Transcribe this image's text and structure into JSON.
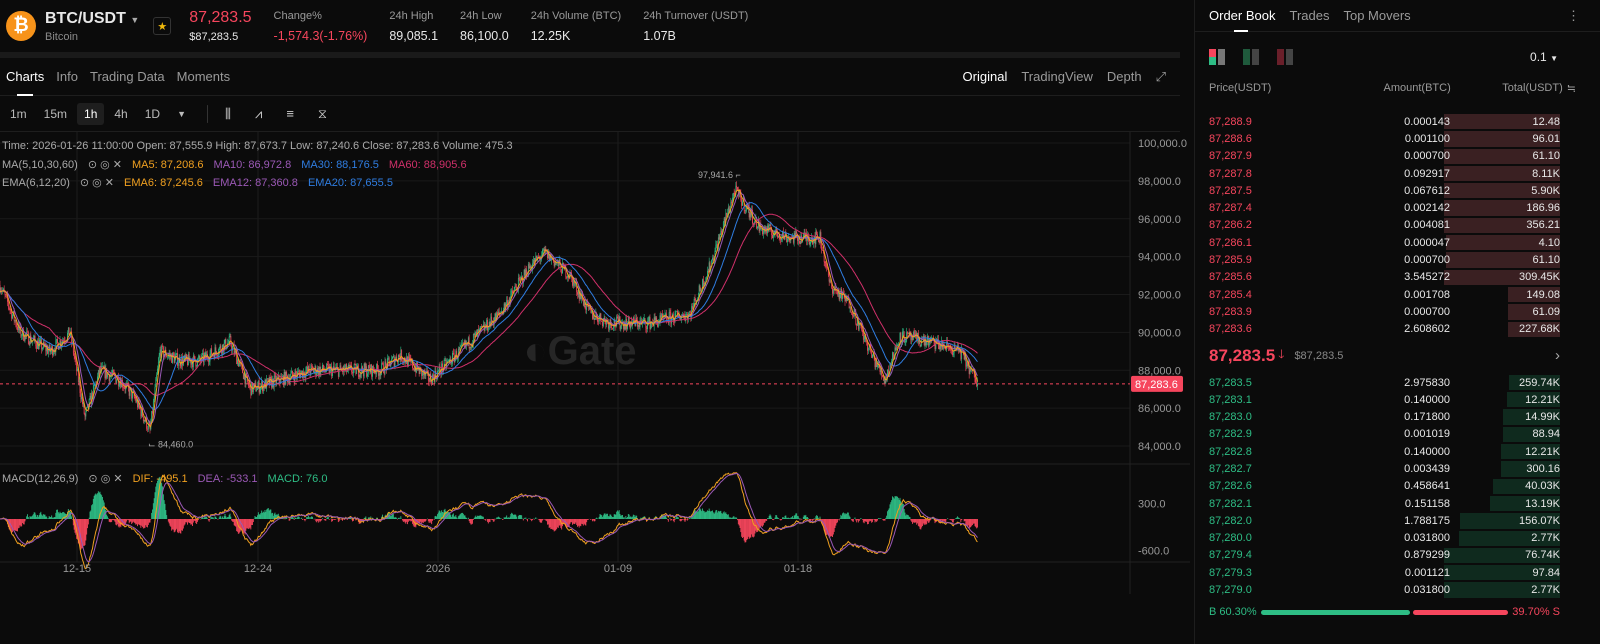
{
  "header": {
    "pair": "BTC/USDT",
    "name": "Bitcoin",
    "coin_glyph": "₿",
    "price": "87,283.5",
    "price_usd": "$87,283.5",
    "stats": [
      {
        "label": "Change%",
        "value": "-1,574.3(-1.76%)",
        "neg": true
      },
      {
        "label": "24h High",
        "value": "89,085.1"
      },
      {
        "label": "24h Low",
        "value": "86,100.0"
      },
      {
        "label": "24h Volume (BTC)",
        "value": "12.25K"
      },
      {
        "label": "24h Turnover (USDT)",
        "value": "1.07B"
      }
    ]
  },
  "tabs": [
    "Charts",
    "Info",
    "Trading Data",
    "Moments"
  ],
  "views": [
    "Original",
    "TradingView",
    "Depth"
  ],
  "timeframes": [
    "1m",
    "15m",
    "1h",
    "4h",
    "1D"
  ],
  "ohlc": "Time: 2026-01-26 11:00:00     Open: 87,555.9     High: 87,673.7     Low: 87,240.6     Close: 87,283.6     Volume: 475.3",
  "ma": {
    "label": "MA(5,10,30,60)",
    "items": [
      "MA5: 87,208.6",
      "MA10: 86,972.8",
      "MA30: 88,176.5",
      "MA60: 88,905.6"
    ]
  },
  "ema": {
    "label": "EMA(6,12,20)",
    "items": [
      "EMA6: 87,245.6",
      "EMA12: 87,360.8",
      "EMA20: 87,655.5"
    ]
  },
  "macd": {
    "label": "MACD(12,26,9)",
    "items": [
      "DIF: -495.1",
      "DEA: -533.1",
      "MACD: 76.0"
    ]
  },
  "colors": {
    "up": "#2ebd85",
    "down": "#f6465d",
    "ma5": "#f0a020",
    "ma10": "#9b59b6",
    "ma30": "#2f7de1",
    "ma60": "#d0306a"
  },
  "watermark": "Gate",
  "chart_data": {
    "type": "candlestick",
    "ylim": [
      83000,
      101000
    ],
    "yticks": [
      "100,000.0",
      "98,000.0",
      "96,000.0",
      "94,000.0",
      "92,000.0",
      "90,000.0",
      "88,000.0",
      "86,000.0",
      "84,000.0"
    ],
    "xticks": [
      {
        "label": "12-15",
        "day": 3.85
      },
      {
        "label": "12-24",
        "day": 12.9
      },
      {
        "label": "2026",
        "day": 21.9
      },
      {
        "label": "01-09",
        "day": 30.9
      },
      {
        "label": "01-18",
        "day": 39.9
      }
    ],
    "high_label": "97,941.6",
    "low_label": "84,460.0",
    "last_price": "87,283.6",
    "last": 87283.6,
    "macd_ticks": [
      "300.0",
      "-600.0"
    ],
    "keypoints": [
      [
        0,
        92500
      ],
      [
        1,
        90000
      ],
      [
        2.5,
        89000
      ],
      [
        3.5,
        90000
      ],
      [
        4.25,
        85500
      ],
      [
        5,
        88000
      ],
      [
        6,
        87500
      ],
      [
        6.75,
        86500
      ],
      [
        7.5,
        84800
      ],
      [
        8,
        89000
      ],
      [
        9,
        88500
      ],
      [
        10,
        88500
      ],
      [
        11.5,
        89500
      ],
      [
        12.5,
        87000
      ],
      [
        14,
        87500
      ],
      [
        15.5,
        88000
      ],
      [
        17,
        88000
      ],
      [
        19,
        88000
      ],
      [
        20,
        88800
      ],
      [
        21.5,
        87500
      ],
      [
        23.5,
        89500
      ],
      [
        25,
        91000
      ],
      [
        26.5,
        93500
      ],
      [
        27.25,
        94200
      ],
      [
        28.5,
        93000
      ],
      [
        29.5,
        91000
      ],
      [
        30.5,
        90500
      ],
      [
        32.5,
        90500
      ],
      [
        34.5,
        91000
      ],
      [
        35.5,
        93500
      ],
      [
        36.75,
        97500
      ],
      [
        38,
        95500
      ],
      [
        39.5,
        95000
      ],
      [
        41,
        95000
      ],
      [
        41.5,
        92500
      ],
      [
        42.5,
        91500
      ],
      [
        43.5,
        89000
      ],
      [
        44.25,
        87500
      ],
      [
        45,
        89800
      ],
      [
        46.5,
        89500
      ],
      [
        48,
        89000
      ],
      [
        48.9,
        87283
      ]
    ]
  },
  "orderbook": {
    "tabs": [
      "Order Book",
      "Trades",
      "Top Movers"
    ],
    "precision": "0.1",
    "headers": [
      "Price(USDT)",
      "Amount(BTC)",
      "Total(USDT)"
    ],
    "asks": [
      [
        "87,288.9",
        "0.000143",
        "12.48",
        1
      ],
      [
        "87,288.6",
        "0.001100",
        "96.01",
        1
      ],
      [
        "87,287.9",
        "0.000700",
        "61.10",
        1
      ],
      [
        "87,287.8",
        "0.092917",
        "8.11K",
        1
      ],
      [
        "87,287.5",
        "0.067612",
        "5.90K",
        1
      ],
      [
        "87,287.4",
        "0.002142",
        "186.96",
        1
      ],
      [
        "87,286.2",
        "0.004081",
        "356.21",
        1
      ],
      [
        "87,286.1",
        "0.000047",
        "4.10",
        0.98
      ],
      [
        "87,285.9",
        "0.000700",
        "61.10",
        0.98
      ],
      [
        "87,285.6",
        "3.545272",
        "309.45K",
        1
      ],
      [
        "87,285.4",
        "0.001708",
        "149.08",
        0.45
      ],
      [
        "87,283.9",
        "0.000700",
        "61.09",
        0.45
      ],
      [
        "87,283.6",
        "2.608602",
        "227.68K",
        0.45
      ]
    ],
    "mid_price": "87,283.5",
    "mid_usd": "$87,283.5",
    "bids": [
      [
        "87,283.5",
        "2.975830",
        "259.74K",
        0.44
      ],
      [
        "87,283.1",
        "0.140000",
        "12.21K",
        0.46
      ],
      [
        "87,283.0",
        "0.171800",
        "14.99K",
        0.49
      ],
      [
        "87,282.9",
        "0.001019",
        "88.94",
        0.49
      ],
      [
        "87,282.8",
        "0.140000",
        "12.21K",
        0.51
      ],
      [
        "87,282.7",
        "0.003439",
        "300.16",
        0.51
      ],
      [
        "87,282.6",
        "0.458641",
        "40.03K",
        0.58
      ],
      [
        "87,282.1",
        "0.151158",
        "13.19K",
        0.6
      ],
      [
        "87,282.0",
        "1.788175",
        "156.07K",
        0.86
      ],
      [
        "87,280.0",
        "0.031800",
        "2.77K",
        0.87
      ],
      [
        "87,279.4",
        "0.879299",
        "76.74K",
        1
      ],
      [
        "87,279.3",
        "0.001121",
        "97.84",
        1
      ],
      [
        "87,279.0",
        "0.031800",
        "2.77K",
        1
      ]
    ],
    "buy_pct": "B 60.30%",
    "sell_pct": "39.70% S",
    "buy_ratio": 0.603
  }
}
